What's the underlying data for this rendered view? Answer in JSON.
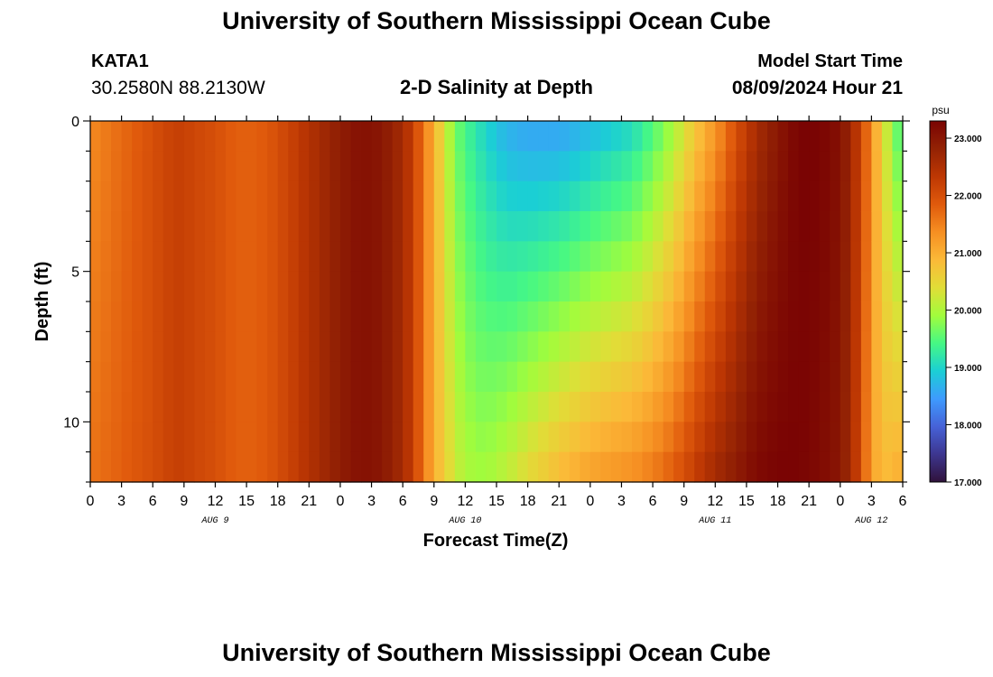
{
  "header": {
    "title": "University of Southern Mississippi Ocean Cube",
    "station_id": "KATA1",
    "station_coords": "30.2580N  88.2130W",
    "plot_title": "2-D Salinity at Depth",
    "model_start_label": "Model Start Time",
    "model_start_value": "08/09/2024 Hour 21"
  },
  "footer": {
    "title": "University of Southern Mississippi Ocean Cube"
  },
  "chart_data": {
    "type": "heatmap",
    "title": "2-D Salinity at Depth",
    "xlabel": "Forecast Time(Z)",
    "ylabel": "Depth (ft)",
    "x_start_hour": 0,
    "x_end_hour": 78,
    "x_tick_hours": [
      0,
      3,
      6,
      9,
      12,
      15,
      18,
      21,
      24,
      27,
      30,
      33,
      36,
      39,
      42,
      45,
      48,
      51,
      54,
      57,
      60,
      63,
      66,
      69,
      72,
      75,
      78
    ],
    "x_tick_labels": [
      "0",
      "3",
      "6",
      "9",
      "12",
      "15",
      "18",
      "21",
      "0",
      "3",
      "6",
      "9",
      "12",
      "15",
      "18",
      "21",
      "0",
      "3",
      "6",
      "9",
      "12",
      "15",
      "18",
      "21",
      "0",
      "3",
      "6"
    ],
    "date_labels": [
      {
        "hour": 12,
        "label": "AUG 9"
      },
      {
        "hour": 36,
        "label": "AUG 10"
      },
      {
        "hour": 60,
        "label": "AUG 11"
      },
      {
        "hour": 75,
        "label": "AUG 12"
      }
    ],
    "ylim": [
      0,
      12
    ],
    "y_ticks": [
      0,
      5,
      10
    ],
    "y_tick_labels": [
      "0",
      "5",
      "10"
    ],
    "colorbar": {
      "unit": "psu",
      "min": 17.0,
      "max": 23.3,
      "ticks": [
        17.0,
        18.0,
        19.0,
        20.0,
        21.0,
        22.0,
        23.0
      ],
      "tick_labels": [
        "17.000",
        "18.000",
        "19.000",
        "20.000",
        "21.000",
        "22.000",
        "23.000"
      ]
    },
    "depth_layers": [
      0.5,
      1.5,
      2.5,
      3.5,
      4.5,
      5.5,
      6.5,
      7.5,
      8.5,
      9.5,
      10.5,
      11.5
    ],
    "surface_salinity": {
      "hours": [
        0,
        3,
        6,
        8,
        9,
        10,
        12,
        14,
        16,
        18,
        20,
        22,
        24,
        26,
        28,
        30,
        31,
        32,
        33,
        34,
        35,
        36,
        37,
        38,
        40,
        42,
        45,
        48,
        52,
        54,
        56,
        58,
        60,
        62,
        64,
        66,
        68,
        70,
        72,
        73,
        74,
        75,
        76,
        78
      ],
      "values": [
        21.4,
        21.7,
        22.0,
        22.2,
        22.2,
        22.1,
        22.0,
        21.8,
        21.8,
        22.0,
        22.3,
        22.6,
        22.9,
        23.1,
        23.0,
        22.6,
        22.2,
        21.6,
        21.0,
        20.3,
        19.7,
        19.4,
        19.2,
        19.0,
        18.7,
        18.6,
        18.6,
        18.8,
        19.1,
        19.5,
        20.0,
        20.7,
        21.3,
        22.0,
        22.6,
        23.0,
        23.3,
        23.3,
        23.1,
        22.7,
        22.1,
        21.4,
        20.5,
        19.3
      ]
    },
    "bottom_salinity": {
      "hours": [
        0,
        3,
        6,
        8,
        9,
        10,
        12,
        14,
        16,
        18,
        20,
        22,
        24,
        26,
        28,
        30,
        31,
        32,
        33,
        34,
        35,
        36,
        37,
        38,
        40,
        42,
        45,
        48,
        52,
        54,
        56,
        58,
        60,
        62,
        64,
        66,
        68,
        70,
        72,
        73,
        74,
        75,
        76,
        78
      ],
      "values": [
        21.6,
        21.8,
        22.0,
        22.2,
        22.2,
        22.1,
        22.0,
        21.8,
        21.8,
        22.0,
        22.3,
        22.6,
        22.9,
        23.1,
        23.0,
        22.6,
        22.2,
        21.6,
        21.0,
        20.6,
        20.2,
        20.0,
        19.9,
        19.9,
        20.1,
        20.4,
        20.8,
        21.1,
        21.3,
        21.5,
        21.8,
        22.2,
        22.6,
        22.9,
        23.2,
        23.3,
        23.3,
        23.2,
        23.0,
        22.6,
        22.0,
        21.2,
        20.8,
        21.0
      ]
    },
    "colors": {
      "scale": [
        "#30123b",
        "#3d368f",
        "#4662d7",
        "#3e9bfe",
        "#1bcfd4",
        "#46f884",
        "#a2fc3c",
        "#e1dd37",
        "#fbb938",
        "#f68f22",
        "#e05a0c",
        "#bd3703",
        "#932204",
        "#7a0403"
      ]
    }
  }
}
